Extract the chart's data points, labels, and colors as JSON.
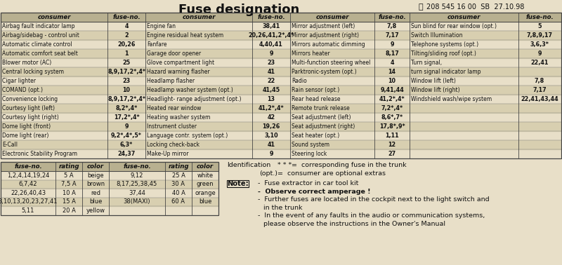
{
  "title": "Fuse designation",
  "subtitle": "208 545 16 00  SB  27.10.98",
  "bg_color": "#e8dfc8",
  "header_bg": "#b8b090",
  "alt_row_bg": "#d8cfb0",
  "main_table": {
    "col1": [
      [
        "Airbag fault indicator lamp",
        "4"
      ],
      [
        "Airbag/sidebag - control unit",
        "2"
      ],
      [
        "Automatic climate control",
        "20,26"
      ],
      [
        "Automatic comfort seat belt",
        "1"
      ],
      [
        "Blower motor (AC)",
        "25"
      ],
      [
        "Central locking system",
        "8,9,17,2*,4*"
      ],
      [
        "Cigar lighter",
        "23"
      ],
      [
        "COMAND (opt.)",
        "10"
      ],
      [
        "Convenience locking",
        "8,9,17,2*,4*"
      ],
      [
        "Courtesy light (left)",
        "8,2*,4*"
      ],
      [
        "Courtesy light (right)",
        "17,2*,4*"
      ],
      [
        "Dome light (front)",
        "9"
      ],
      [
        "Dome light (rear)",
        "9,2*,4*,5*"
      ],
      [
        "E-Call",
        "6,3*"
      ],
      [
        "Electronic Stability Program",
        "24,37"
      ]
    ],
    "col2": [
      [
        "Engine fan",
        "38,41"
      ],
      [
        "Engine residual heat system",
        "20,26,41,2*,4*"
      ],
      [
        "Fanfare",
        "4,40,41"
      ],
      [
        "Garage door opener",
        "9"
      ],
      [
        "Glove compartment light",
        "23"
      ],
      [
        "Hazard warning flasher",
        "41"
      ],
      [
        "Headlamp flasher",
        "22"
      ],
      [
        "Headlamp washer system (opt.)",
        "41,45"
      ],
      [
        "Headlight- range adjustment (opt.)",
        "13"
      ],
      [
        "Heated rear window",
        "41,2*,4*"
      ],
      [
        "Heating washer system",
        "42"
      ],
      [
        "Instrument cluster",
        "19,26"
      ],
      [
        "Language contr. system (opt.)",
        "3,10"
      ],
      [
        "Locking check-back",
        "41"
      ],
      [
        "Make-Up mirror",
        "9"
      ]
    ],
    "col3": [
      [
        "Mirror adjustment (left)",
        "7,8"
      ],
      [
        "Mirror adjustment (right)",
        "7,17"
      ],
      [
        "Mirrors automatic dimming",
        "9"
      ],
      [
        "Mirrors heater",
        "8,17"
      ],
      [
        "Multi-function steering wheel",
        "4"
      ],
      [
        "Parktronic-system (opt.)",
        "14"
      ],
      [
        "Radio",
        "10"
      ],
      [
        "Rain sensor (opt.)",
        "9,41,44"
      ],
      [
        "Rear head release",
        "41,2*,4*"
      ],
      [
        "Remote trunk release",
        "7,2*,4*"
      ],
      [
        "Seat adjustment (left)",
        "8,6*,7*"
      ],
      [
        "Seat adjustment (right)",
        "17,8*,9*"
      ],
      [
        "Seat heater (opt.)",
        "1,11"
      ],
      [
        "Sound system",
        "12"
      ],
      [
        "Steering lock",
        "27"
      ]
    ],
    "col4": [
      [
        "Sun blind for rear window (opt.)",
        "5"
      ],
      [
        "Switch Illumination",
        "7,8,9,17"
      ],
      [
        "Telephone systems (opt.)",
        "3,6,3*"
      ],
      [
        "Tilting/sliding roof (opt.)",
        "9"
      ],
      [
        "Turn signal,",
        "22,41"
      ],
      [
        "turn signal indicator lamp",
        ""
      ],
      [
        "Window lift (left)",
        "7,8"
      ],
      [
        "Window lift (right)",
        "7,17"
      ],
      [
        "Windshield wash/wipe system",
        "22,41,43,44"
      ],
      [
        "",
        ""
      ],
      [
        "",
        ""
      ],
      [
        "",
        ""
      ],
      [
        "",
        ""
      ],
      [
        "",
        ""
      ],
      [
        "",
        ""
      ]
    ]
  },
  "fuse_table": {
    "headers": [
      "fuse-no.",
      "rating",
      "color",
      "fuse-no.",
      "rating",
      "color"
    ],
    "rows": [
      [
        "1,2,4,14,19,24",
        "5 A",
        "beige",
        "9,12",
        "25 A",
        "white"
      ],
      [
        "6,7,42",
        "7,5 A",
        "brown",
        "8,17,25,38,45",
        "30 A",
        "green"
      ],
      [
        "22,26,40,43",
        "10 A",
        "red",
        "37,44",
        "40 A",
        "orange"
      ],
      [
        "3,10,13,20,23,27,41",
        "15 A",
        "blue",
        "38(MAXI)",
        "60 A",
        "blue"
      ],
      [
        "5,11",
        "20 A",
        "yellow",
        "",
        "",
        ""
      ]
    ]
  }
}
